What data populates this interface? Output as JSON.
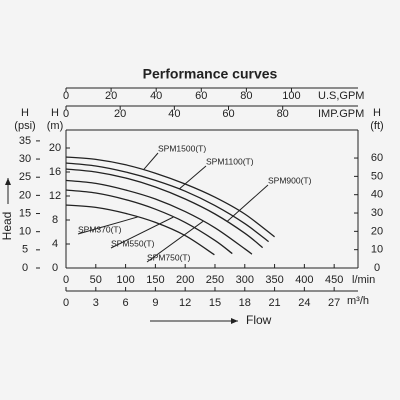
{
  "chart_data": {
    "type": "line",
    "title": "Performance curves",
    "head_symbol": "H",
    "y_title": "Head",
    "x_title": "Flow",
    "xlim": [
      0,
      490
    ],
    "xticks": [
      0,
      50,
      100,
      150,
      200,
      250,
      300,
      350,
      400,
      450
    ],
    "x_label": "l/min",
    "x_usgpm": {
      "label": "U.S,GPM",
      "lim": [
        0,
        129.5
      ],
      "ticks": [
        0,
        20,
        40,
        60,
        80,
        100
      ]
    },
    "x_impgpm": {
      "label": "IMP.GPM",
      "lim": [
        0,
        107.8
      ],
      "ticks": [
        0,
        20,
        40,
        60,
        80
      ]
    },
    "x_m3h": {
      "label": "m³/h",
      "lim": [
        0,
        29.4
      ],
      "ticks": [
        0,
        3,
        6,
        9,
        12,
        15,
        18,
        21,
        24,
        27
      ]
    },
    "ylim": [
      0,
      23
    ],
    "yticks": [
      0,
      4,
      8,
      12,
      16,
      20
    ],
    "y_label": "(m)",
    "y_psi": {
      "label": "(psi)",
      "lim": [
        0,
        38
      ],
      "ticks": [
        0,
        5,
        10,
        15,
        20,
        25,
        30,
        35
      ]
    },
    "y_ft": {
      "label": "(ft)",
      "lim": [
        0,
        75.3
      ],
      "ticks": [
        0,
        10,
        20,
        30,
        40,
        50,
        60
      ]
    },
    "series": [
      {
        "name": "SPM370(T)",
        "color": "#222222",
        "x": [
          0,
          50,
          100,
          150,
          200,
          249
        ],
        "values": [
          10.5,
          10.1,
          9.1,
          7.6,
          5.4,
          2.2
        ]
      },
      {
        "name": "SPM550(T)",
        "color": "#222222",
        "x": [
          0,
          50,
          100,
          150,
          200,
          250,
          279
        ],
        "values": [
          13,
          12.5,
          11.4,
          9.8,
          7.6,
          4.6,
          2.4
        ]
      },
      {
        "name": "SPM750(T)",
        "color": "#222222",
        "x": [
          0,
          50,
          100,
          150,
          200,
          250,
          300,
          312
        ],
        "values": [
          14.6,
          14.1,
          13,
          11.5,
          9.4,
          6.7,
          3.2,
          2.3
        ]
      },
      {
        "name": "SPM900(T)",
        "color": "#222222",
        "x": [
          0,
          50,
          100,
          150,
          200,
          250,
          300,
          330
        ],
        "values": [
          16.5,
          16,
          15,
          13.5,
          11.5,
          9,
          5.8,
          3.4
        ]
      },
      {
        "name": "SPM1100(T)",
        "color": "#222222",
        "x": [
          0,
          50,
          100,
          150,
          200,
          250,
          300,
          340
        ],
        "values": [
          17.5,
          17,
          16,
          14.6,
          12.8,
          10.4,
          7.4,
          4.4
        ]
      },
      {
        "name": "SPM1500(T)",
        "color": "#222222",
        "x": [
          0,
          50,
          100,
          150,
          200,
          250,
          300,
          350
        ],
        "values": [
          18.5,
          18.1,
          17.2,
          15.8,
          14,
          11.8,
          9,
          5.2
        ]
      }
    ]
  }
}
